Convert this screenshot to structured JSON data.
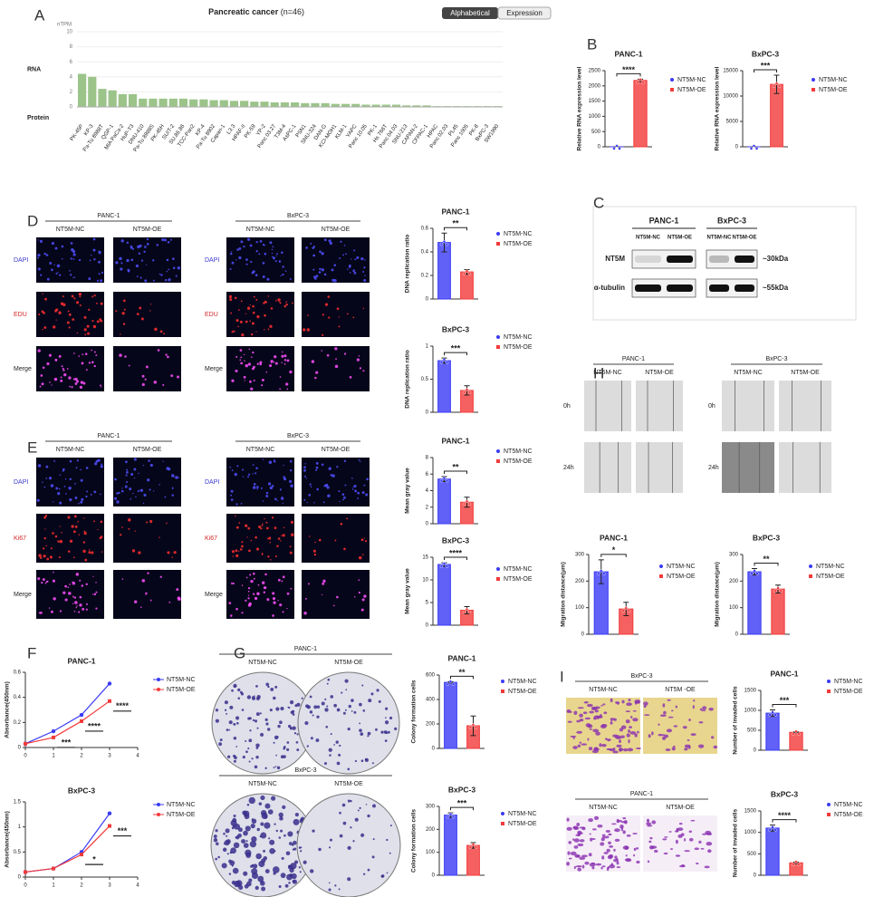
{
  "panel_labels": [
    "A",
    "B",
    "C",
    "D",
    "E",
    "F",
    "G",
    "H",
    "I"
  ],
  "toggle": [
    "Alphabetical",
    "Expression"
  ],
  "blot": {
    "groups": [
      {
        "header": "PANC-1",
        "columns": [
          "NT5M-NC",
          "NT5M-OE"
        ]
      },
      {
        "header": "BxPC-3",
        "columns": [
          "NT5M-NC",
          "NT5M-OE"
        ]
      }
    ],
    "rows": [
      "NT5M",
      "α-tubulin"
    ],
    "sizes": [
      "~30kDa",
      "~55kDa"
    ]
  },
  "image_panels": [
    {
      "header": "PANC-1",
      "columns": [
        "NT5M-NC",
        "NT5M-OE"
      ],
      "rows": [
        "DAPI",
        "EDU",
        "Merge"
      ]
    },
    {
      "header": "BxPC-3",
      "columns": [
        "NT5M-NC",
        "NT5M-OE"
      ],
      "rows": [
        "DAPI",
        "EDU",
        "Merge"
      ]
    },
    {
      "header": "PANC-1",
      "columns": [
        "NT5M-NC",
        "NT5M-OE"
      ],
      "rows": [
        "DAPI",
        "Ki67",
        "Merge"
      ]
    },
    {
      "header": "BxPC-3",
      "columns": [
        "NT5M-NC",
        "NT5M-OE"
      ],
      "rows": [
        "DAPI",
        "Ki67",
        "Merge"
      ]
    },
    {
      "header": "PANC-1",
      "columns": [
        "NT5M-NC",
        "NT5M-OE"
      ],
      "rows": [
        "0h",
        "24h"
      ]
    },
    {
      "header": "BxPC-3",
      "columns": [
        "NT5M-NC",
        "NT5M-OE"
      ],
      "rows": [
        "0h",
        "24h"
      ]
    },
    {
      "header": "PANC-1",
      "columns": [
        "NT5M-NC",
        "NT5M-OE"
      ],
      "rows": []
    },
    {
      "header": "BxPC-3",
      "columns": [
        "NT5M-NC",
        "NT5M-OE"
      ],
      "rows": []
    },
    {
      "header": "BxPC-3",
      "columns": [
        "NT5M-NC",
        "NT5M -OE"
      ],
      "rows": []
    },
    {
      "header": "PANC-1",
      "columns": [
        "NT5M-NC",
        "NT5M-OE"
      ],
      "rows": []
    }
  ],
  "chart_data": [
    {
      "type": "expression",
      "title": "Pancreatic cancer",
      "subtitle": "(n=46)",
      "ylabel": "nTPM",
      "row_labels": [
        "RNA",
        "Protein"
      ],
      "color": "#9cc48a",
      "categories": [
        "PK-45P",
        "KP-3",
        "Pa-Tu 8988T",
        "QGP-1",
        "MIA PaCa-2",
        "HuP-T3",
        "DNU-410",
        "Pa-Tu 8988S",
        "PK-45H",
        "SUIT-2",
        "SU.86.86",
        "TCC-Pan2",
        "KP-4",
        "Pa-Tu 8902",
        "Capan-1",
        "L3.3",
        "HPAF-II",
        "PK-59",
        "YP-2",
        "Panc 03.27",
        "T3M-4",
        "AsPC-1",
        "PSN1",
        "SNU-324",
        "DAN-G",
        "KCI-MOH1",
        "KLM-1",
        "YAPC",
        "Panc 10.05",
        "PK-1",
        "Hs 766T",
        "Panc 04.03",
        "SNU-213",
        "CAPAN-2",
        "CFPAC-1",
        "HPAC",
        "Panc 02.03",
        "PL45",
        "Panc 1005",
        "PK-8",
        "BxPC-3",
        "SW1990"
      ],
      "values": [
        4.4,
        4.0,
        2.4,
        2.2,
        1.7,
        1.7,
        1.1,
        1.1,
        1.1,
        1.1,
        1.1,
        1.0,
        1.0,
        0.9,
        0.9,
        0.8,
        0.8,
        0.7,
        0.7,
        0.6,
        0.6,
        0.6,
        0.5,
        0.5,
        0.5,
        0.4,
        0.4,
        0.4,
        0.3,
        0.3,
        0.3,
        0.3,
        0.2,
        0.2,
        0.2,
        0.1,
        0.1,
        0.1,
        0.1,
        0.1,
        0.1,
        0.1
      ],
      "ylim": [
        0,
        10
      ],
      "yticks": [
        0,
        2,
        4,
        6,
        8,
        10
      ]
    },
    {
      "type": "bar",
      "title": "PANC-1",
      "ylabel": "Relative RNA expression level",
      "categories": [
        "NT5M-NC",
        "NT5M-OE"
      ],
      "values": [
        1,
        2180
      ],
      "errors": [
        0,
        40
      ],
      "colors": [
        "#3a3af5",
        "#f23a3a"
      ],
      "significance": "****",
      "ylim": [
        0,
        2500
      ],
      "yticks": [
        0,
        500,
        1000,
        1500,
        2000,
        2500
      ]
    },
    {
      "type": "bar",
      "title": "BxPC-3",
      "ylabel": "Relative RNA expression level",
      "categories": [
        "NT5M-NC",
        "NT5M-OE"
      ],
      "values": [
        1,
        12300
      ],
      "errors": [
        0,
        1800
      ],
      "colors": [
        "#3a3af5",
        "#f23a3a"
      ],
      "significance": "***",
      "ylim": [
        0,
        15000
      ],
      "yticks": [
        0,
        5000,
        10000,
        15000
      ]
    },
    {
      "type": "bar",
      "title": "PANC-1",
      "ylabel": "DNA replication ratio",
      "categories": [
        "NT5M-NC",
        "NT5M-OE"
      ],
      "values": [
        0.48,
        0.23
      ],
      "errors": [
        0.08,
        0.02
      ],
      "colors": [
        "#3a3af5",
        "#f23a3a"
      ],
      "significance": "**",
      "ylim": [
        0,
        0.6
      ],
      "yticks": [
        0,
        0.2,
        0.4,
        0.6
      ]
    },
    {
      "type": "bar",
      "title": "BxPC-3",
      "ylabel": "DNA replication ratio",
      "categories": [
        "NT5M-NC",
        "NT5M-OE"
      ],
      "values": [
        0.78,
        0.33
      ],
      "errors": [
        0.04,
        0.07
      ],
      "colors": [
        "#3a3af5",
        "#f23a3a"
      ],
      "significance": "***",
      "ylim": [
        0,
        1
      ],
      "yticks": [
        0,
        0.5,
        1
      ]
    },
    {
      "type": "bar",
      "title": "PANC-1",
      "ylabel": "Mean gray value",
      "categories": [
        "NT5M-NC",
        "NT5M-OE"
      ],
      "values": [
        5.4,
        2.6
      ],
      "errors": [
        0.3,
        0.6
      ],
      "colors": [
        "#3a3af5",
        "#f23a3a"
      ],
      "significance": "**",
      "ylim": [
        0,
        8
      ],
      "yticks": [
        0,
        2,
        4,
        6,
        8
      ]
    },
    {
      "type": "bar",
      "title": "BxPC-3",
      "ylabel": "Mean gray value",
      "categories": [
        "NT5M-NC",
        "NT5M-OE"
      ],
      "values": [
        13.4,
        3.3
      ],
      "errors": [
        0.4,
        0.8
      ],
      "colors": [
        "#3a3af5",
        "#f23a3a"
      ],
      "significance": "****",
      "ylim": [
        0,
        15
      ],
      "yticks": [
        0,
        5,
        10,
        15
      ]
    },
    {
      "type": "bar",
      "title": "PANC-1",
      "ylabel": "Migration distance(μm)",
      "categories": [
        "NT5M-NC",
        "NT5M-OE"
      ],
      "values": [
        235,
        95
      ],
      "errors": [
        45,
        25
      ],
      "colors": [
        "#3a3af5",
        "#f23a3a"
      ],
      "significance": "*",
      "ylim": [
        0,
        300
      ],
      "yticks": [
        0,
        100,
        200,
        300
      ]
    },
    {
      "type": "bar",
      "title": "BxPC-3",
      "ylabel": "Migration distance(μm)",
      "categories": [
        "NT5M-NC",
        "NT5M-OE"
      ],
      "values": [
        235,
        170
      ],
      "errors": [
        12,
        15
      ],
      "colors": [
        "#3a3af5",
        "#f23a3a"
      ],
      "significance": "**",
      "ylim": [
        0,
        300
      ],
      "yticks": [
        0,
        100,
        200,
        300
      ]
    },
    {
      "type": "bar",
      "title": "PANC-1",
      "ylabel": "Colony formation cells",
      "categories": [
        "NT5M-NC",
        "NT5M-OE"
      ],
      "values": [
        540,
        185
      ],
      "errors": [
        5,
        80
      ],
      "colors": [
        "#3a3af5",
        "#f23a3a"
      ],
      "significance": "**",
      "ylim": [
        0,
        600
      ],
      "yticks": [
        0,
        200,
        400,
        600
      ]
    },
    {
      "type": "bar",
      "title": "BxPC-3",
      "ylabel": "Colony formation cells",
      "categories": [
        "NT5M-NC",
        "NT5M-OE"
      ],
      "values": [
        262,
        130
      ],
      "errors": [
        10,
        12
      ],
      "colors": [
        "#3a3af5",
        "#f23a3a"
      ],
      "significance": "***",
      "ylim": [
        0,
        300
      ],
      "yticks": [
        0,
        100,
        200,
        300
      ]
    },
    {
      "type": "bar",
      "title": "PANC-1",
      "ylabel": "Number of invaded cells",
      "categories": [
        "NT5M-NC",
        "NT5M-OE"
      ],
      "values": [
        930,
        450
      ],
      "errors": [
        80,
        10
      ],
      "colors": [
        "#3a3af5",
        "#f23a3a"
      ],
      "significance": "***",
      "ylim": [
        0,
        1500
      ],
      "yticks": [
        0,
        500,
        1000,
        1500
      ]
    },
    {
      "type": "bar",
      "title": "BxPC-3",
      "ylabel": "Number of invaded cells",
      "categories": [
        "NT5M-NC",
        "NT5M-OE"
      ],
      "values": [
        1100,
        290
      ],
      "errors": [
        70,
        20
      ],
      "colors": [
        "#3a3af5",
        "#f23a3a"
      ],
      "significance": "****",
      "ylim": [
        0,
        1500
      ],
      "yticks": [
        0,
        500,
        1000,
        1500
      ]
    },
    {
      "type": "line",
      "title": "PANC-1",
      "ylabel": "Absorbance(450nm)",
      "x": [
        0,
        1,
        2,
        3
      ],
      "xlim": [
        0,
        4
      ],
      "xticks": [
        0,
        1,
        2,
        3,
        4
      ],
      "ylim": [
        0,
        0.6
      ],
      "yticks": [
        0,
        0.2,
        0.4,
        0.6
      ],
      "series": [
        {
          "name": "NT5M-NC",
          "color": "#3a3af5",
          "values": [
            0.03,
            0.13,
            0.26,
            0.51
          ]
        },
        {
          "name": "NT5M-OE",
          "color": "#f23a3a",
          "values": [
            0.03,
            0.08,
            0.21,
            0.37
          ]
        }
      ],
      "annotations": [
        {
          "x": 1,
          "text": "***"
        },
        {
          "x": 2,
          "text": "****"
        },
        {
          "x": 3,
          "text": "****"
        }
      ]
    },
    {
      "type": "line",
      "title": "BxPC-3",
      "ylabel": "Absorbance(450nm)",
      "x": [
        0,
        1,
        2,
        3
      ],
      "xlim": [
        0,
        4
      ],
      "xticks": [
        0,
        1,
        2,
        3,
        4
      ],
      "ylim": [
        0,
        1.5
      ],
      "yticks": [
        0,
        0.5,
        1,
        1.5
      ],
      "series": [
        {
          "name": "NT5M-NC",
          "color": "#3a3af5",
          "values": [
            0.1,
            0.17,
            0.5,
            1.27
          ]
        },
        {
          "name": "NT5M-OE",
          "color": "#f23a3a",
          "values": [
            0.1,
            0.17,
            0.45,
            1.02
          ]
        }
      ],
      "annotations": [
        {
          "x": 2,
          "text": "*"
        },
        {
          "x": 3,
          "text": "***"
        }
      ]
    }
  ]
}
